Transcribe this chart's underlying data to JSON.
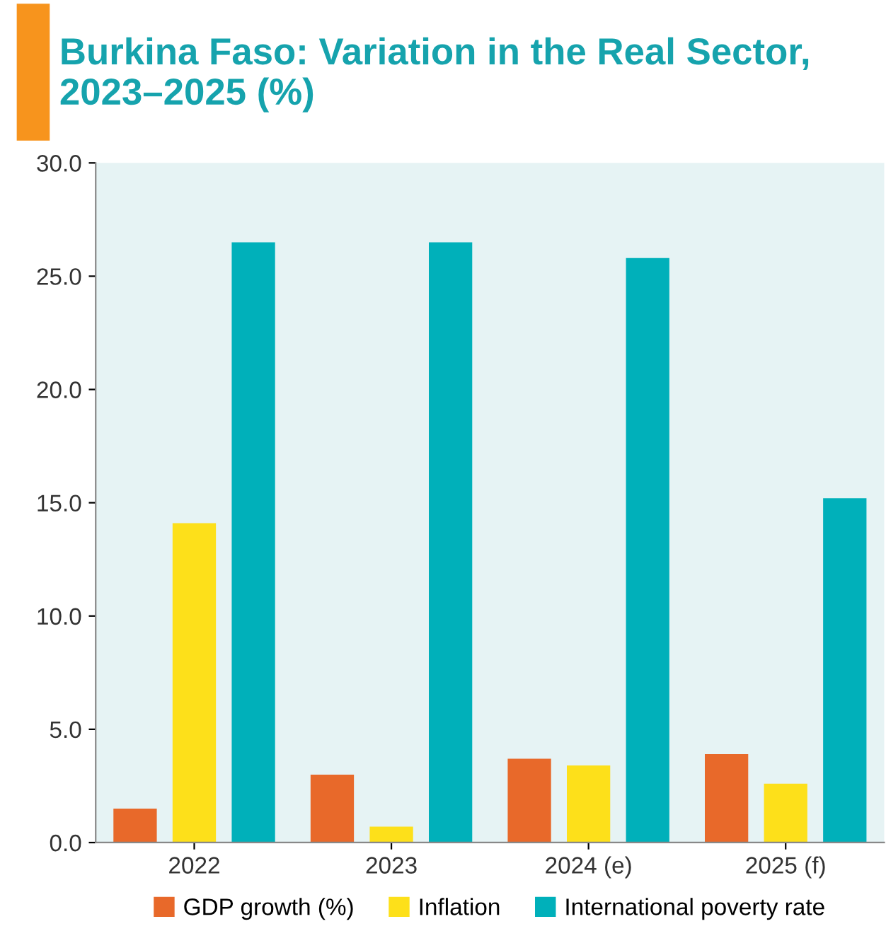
{
  "chart_data": {
    "type": "bar",
    "title": "Burkina Faso: Variation in the Real Sector, 2023–2025 (%)",
    "categories": [
      "2022",
      "2023",
      "2024 (e)",
      "2025 (f)"
    ],
    "series": [
      {
        "name": "GDP growth (%)",
        "color": "#e8692a",
        "values": [
          1.5,
          3.0,
          3.7,
          3.9
        ]
      },
      {
        "name": "Inflation",
        "color": "#fde01a",
        "values": [
          14.1,
          0.7,
          3.4,
          2.6
        ]
      },
      {
        "name": "International poverty rate",
        "color": "#00b0ba",
        "values": [
          26.5,
          26.5,
          25.8,
          15.2
        ]
      }
    ],
    "ylim": [
      0,
      30
    ],
    "yticks": [
      {
        "value": 0,
        "label": "0.0"
      },
      {
        "value": 5,
        "label": "5.0"
      },
      {
        "value": 10,
        "label": "10.0"
      },
      {
        "value": 15,
        "label": "15.0"
      },
      {
        "value": 20,
        "label": "20.0"
      },
      {
        "value": 25,
        "label": "25.0"
      },
      {
        "value": 30,
        "label": "30.0"
      }
    ],
    "grid": false,
    "legend": "bottom"
  }
}
